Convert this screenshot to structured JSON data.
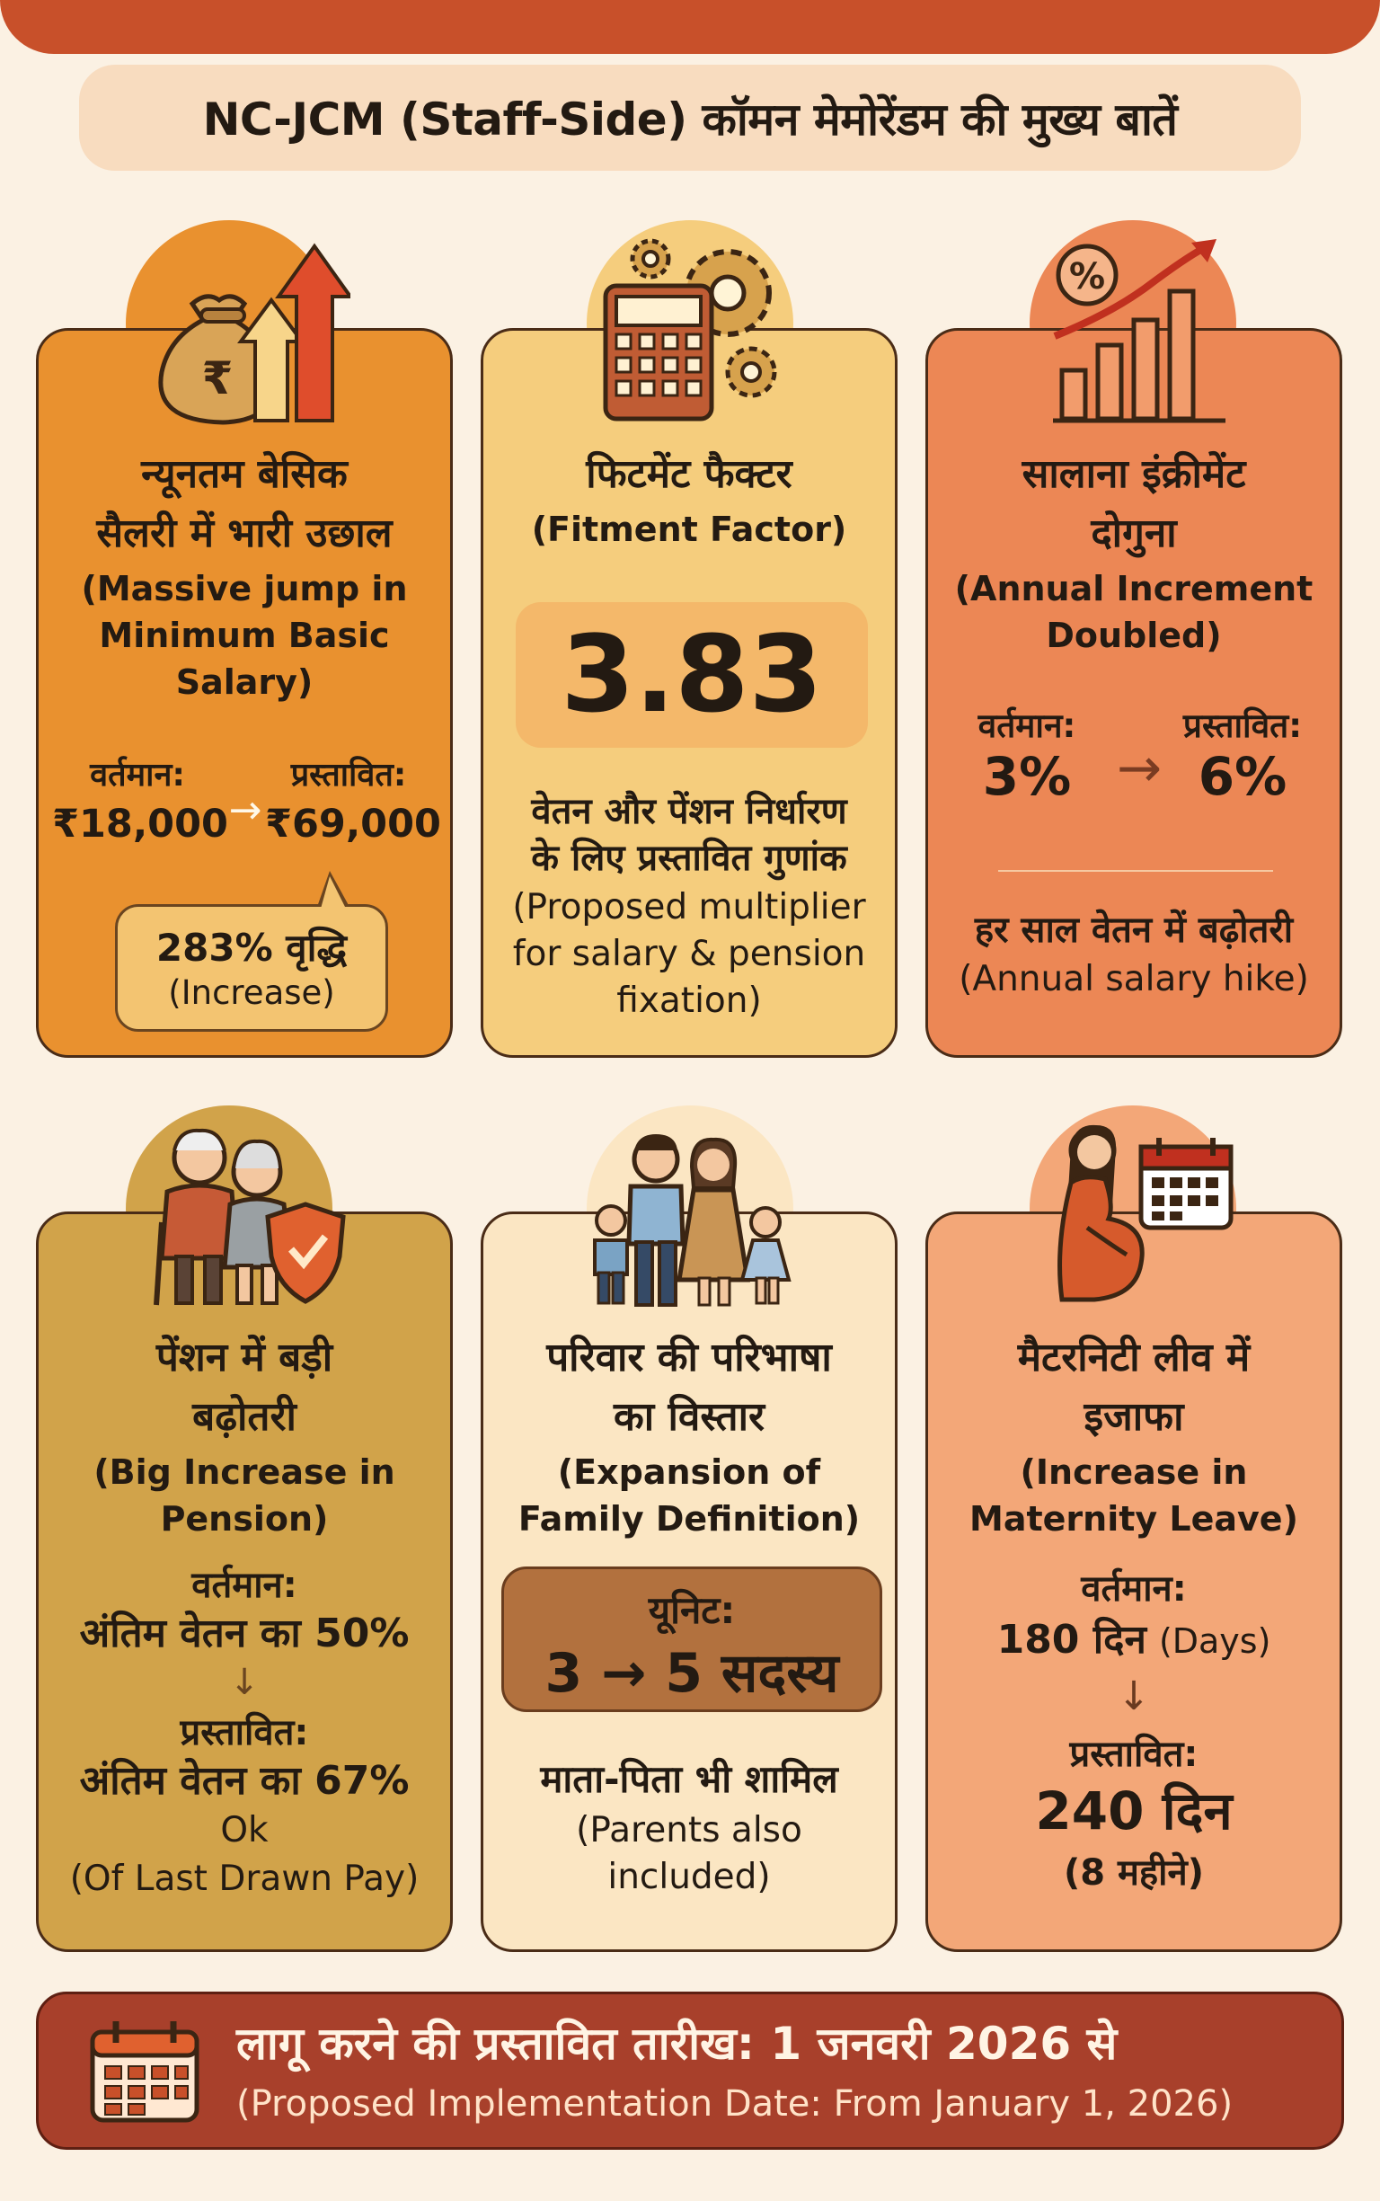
{
  "title": "NC-JCM (Staff-Side) कॉमन मेमोरेंडम की मुख्य बातें",
  "colors": {
    "top": "#c8502a",
    "salary": "#e9912f",
    "fitment": "#f5cd7d",
    "increment": "#ec8755",
    "pension": "#d1a34a",
    "family": "#fbe6c3",
    "maternity": "#f3a778",
    "footer": "#a8402b"
  },
  "cards": {
    "salary": {
      "icon": "money-bag-rupee-up-arrows-icon",
      "title_hi": [
        "न्यूनतम बेसिक",
        "सैलरी में भारी उछाल"
      ],
      "title_en": [
        "(Massive jump in",
        "Minimum Basic",
        "Salary)"
      ],
      "current_label": "वर्तमान:",
      "proposed_label": "प्रस्तावित:",
      "current_value": "₹18,000",
      "arrow": "→",
      "proposed_value": "₹69,000",
      "increase_hi": "283% वृद्धि",
      "increase_en": "(Increase)"
    },
    "fitment": {
      "icon": "calculator-gears-icon",
      "title_hi": "फिटमेंट फैक्टर",
      "title_en": "(Fitment Factor)",
      "value": "3.83",
      "desc_hi": [
        "वेतन और पेंशन निर्धारण",
        "के लिए प्रस्तावित गुणांक"
      ],
      "desc_en": [
        "(Proposed multiplier",
        "for salary & pension",
        "fixation)"
      ]
    },
    "increment": {
      "icon": "percent-bar-chart-up-arrow-icon",
      "title_hi": [
        "सालाना इंक्रीमेंट",
        "दोगुना"
      ],
      "title_en": [
        "(Annual Increment",
        "Doubled)"
      ],
      "current_label": "वर्तमान:",
      "proposed_label": "प्रस्तावित:",
      "current_value": "3%",
      "arrow": "→",
      "proposed_value": "6%",
      "note_hi": "हर साल वेतन में बढ़ोतरी",
      "note_en": "(Annual salary hike)"
    },
    "pension": {
      "icon": "elderly-couple-shield-icon",
      "title_hi": [
        "पेंशन में बड़ी",
        "बढ़ोतरी"
      ],
      "title_en": [
        "(Big Increase in",
        "Pension)"
      ],
      "current_label": "वर्तमान:",
      "current_value": "अंतिम वेतन का 50%",
      "arrow": "↓",
      "proposed_label": "प्रस्तावित:",
      "proposed_value": "अंतिम वेतन का 67%",
      "ok": "Ok",
      "note_en": "(Of Last Drawn Pay)"
    },
    "family": {
      "icon": "family-group-icon",
      "title_hi": [
        "परिवार की परिभाषा",
        "का विस्तार"
      ],
      "title_en": [
        "(Expansion of",
        "Family Definition)"
      ],
      "unit_label": "यूनिट:",
      "unit_value": "3 → 5 सदस्य",
      "note_hi": "माता-पिता भी शामिल",
      "note_en": [
        "(Parents also",
        "included)"
      ]
    },
    "maternity": {
      "icon": "pregnant-woman-calendar-icon",
      "title_hi": [
        "मैटरनिटी लीव में",
        "इजाफा"
      ],
      "title_en": [
        "(Increase in",
        "Maternity Leave)"
      ],
      "current_label": "वर्तमान:",
      "current_value": "180 दिन",
      "current_value_en": "(Days)",
      "arrow": "↓",
      "proposed_label": "प्रस्तावित:",
      "proposed_value": "240 दिन",
      "proposed_note": "(8 महीने)"
    }
  },
  "footer": {
    "icon": "calendar-icon",
    "text_hi": "लागू करने की प्रस्तावित तारीख: 1 जनवरी 2026 से",
    "text_en": "(Proposed Implementation Date: From January 1, 2026)"
  }
}
